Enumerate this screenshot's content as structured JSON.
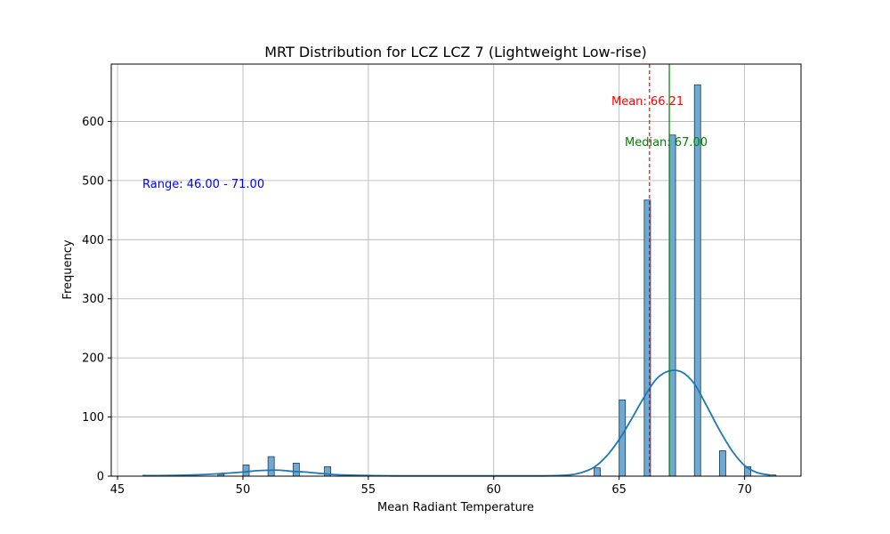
{
  "chart_data": {
    "type": "histogram",
    "title": "MRT Distribution for LCZ LCZ 7 (Lightweight Low-rise)",
    "xlabel": "Mean Radiant Temperature",
    "ylabel": "Frequency",
    "xlim": [
      44.75,
      72.25
    ],
    "ylim": [
      0,
      697
    ],
    "xticks": [
      45,
      50,
      55,
      60,
      65,
      70
    ],
    "yticks": [
      0,
      100,
      200,
      300,
      400,
      500,
      600
    ],
    "grid": true,
    "bar_color": "#6fa8d0",
    "bar_edge": "#1f3b50",
    "bin_width": 0.25,
    "bins": [
      {
        "x": 49.0,
        "count": 3
      },
      {
        "x": 50.0,
        "count": 19
      },
      {
        "x": 51.0,
        "count": 33
      },
      {
        "x": 52.0,
        "count": 22
      },
      {
        "x": 53.25,
        "count": 16
      },
      {
        "x": 64.0,
        "count": 14
      },
      {
        "x": 65.0,
        "count": 129
      },
      {
        "x": 66.0,
        "count": 467
      },
      {
        "x": 67.0,
        "count": 577
      },
      {
        "x": 68.0,
        "count": 662
      },
      {
        "x": 69.0,
        "count": 43
      },
      {
        "x": 70.0,
        "count": 16
      },
      {
        "x": 71.0,
        "count": 2
      }
    ],
    "kde": {
      "color": "#1f77b4",
      "points": [
        [
          46,
          1
        ],
        [
          47,
          1
        ],
        [
          48,
          2
        ],
        [
          49,
          4
        ],
        [
          50,
          7
        ],
        [
          50.5,
          9
        ],
        [
          51,
          10
        ],
        [
          51.5,
          10
        ],
        [
          52,
          8
        ],
        [
          52.5,
          7
        ],
        [
          53,
          5
        ],
        [
          53.5,
          3
        ],
        [
          54,
          2
        ],
        [
          55,
          1
        ],
        [
          56,
          0.5
        ],
        [
          58,
          0.5
        ],
        [
          60,
          0.5
        ],
        [
          62,
          0.5
        ],
        [
          63,
          2
        ],
        [
          63.5,
          6
        ],
        [
          64,
          15
        ],
        [
          64.5,
          34
        ],
        [
          65,
          62
        ],
        [
          65.5,
          97
        ],
        [
          66,
          134
        ],
        [
          66.5,
          165
        ],
        [
          67,
          178
        ],
        [
          67.5,
          176
        ],
        [
          68,
          156
        ],
        [
          68.5,
          118
        ],
        [
          69,
          78
        ],
        [
          69.5,
          43
        ],
        [
          70,
          18
        ],
        [
          70.5,
          6
        ],
        [
          71,
          2
        ]
      ]
    },
    "mean": {
      "value": 66.21,
      "label": "Mean: 66.21",
      "color": "#ff0000"
    },
    "median": {
      "value": 67.0,
      "label": "Median: 67.00",
      "color": "#008000"
    },
    "range_label": {
      "text": "Range: 46.00 - 71.00",
      "color": "#0000ff"
    }
  }
}
